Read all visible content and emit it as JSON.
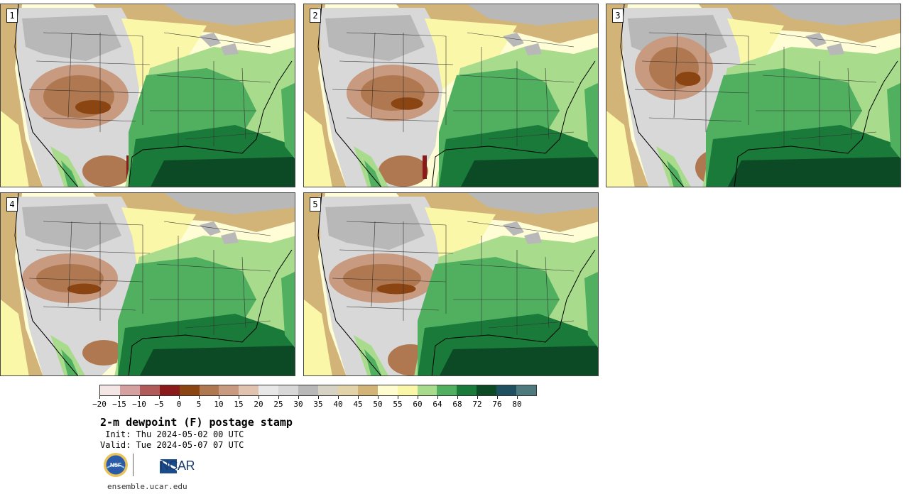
{
  "panels": [
    {
      "label": "1"
    },
    {
      "label": "2"
    },
    {
      "label": "3"
    },
    {
      "label": "4"
    },
    {
      "label": "5"
    }
  ],
  "colorbar": {
    "colors": [
      "#f5e6e6",
      "#d4a0a0",
      "#b05a5a",
      "#8b1a1a",
      "#8b4513",
      "#b07850",
      "#c89a80",
      "#e0c4b0",
      "#e8e8e8",
      "#d8d8d8",
      "#b8b8b8",
      "#d6d2c4",
      "#e2d3a8",
      "#d2b478",
      "#fffcd0",
      "#fbf7a8",
      "#a8dc8c",
      "#50b060",
      "#1a7a3a",
      "#0c4a26",
      "#1e5060",
      "#4e7a7e"
    ],
    "tick_labels": [
      "-20",
      "-15",
      "-10",
      "-5",
      "0",
      "5",
      "10",
      "15",
      "20",
      "25",
      "30",
      "35",
      "40",
      "45",
      "50",
      "55",
      "60",
      "64",
      "68",
      "72",
      "76",
      "80"
    ]
  },
  "title": "2-m dewpoint (F) postage stamp",
  "init": " Init: Thu 2024-05-02 00 UTC",
  "valid": "Valid: Tue 2024-05-07 07 UTC",
  "logos": {
    "nsf": "NSF",
    "ncar": "NCAR"
  },
  "footer_url": "ensemble.ucar.edu"
}
